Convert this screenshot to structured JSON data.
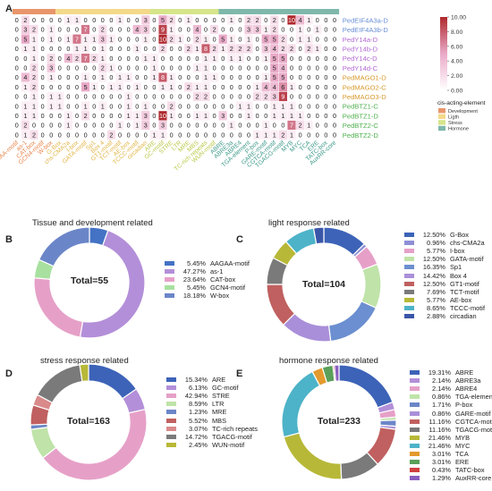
{
  "chart_data": [
    {
      "panel": "A",
      "type": "heatmap",
      "rows": [
        "PedEIF4A3a-D",
        "PedEIF4A3b-D",
        "PedY14a-D",
        "PedY14b-D",
        "PedY14c-D",
        "PedY14d-C",
        "PedMAGO1-D",
        "PedMAGO2-C",
        "PedMAGO3-D",
        "PedBTZ1-C",
        "PedBTZ1-D",
        "PedBTZ2-C",
        "PedBTZ2-D"
      ],
      "columns": [
        "AAGAA-motif",
        "as-1",
        "CAT-box",
        "GCN4-motif",
        "W-box",
        "G-Box",
        "chs-CMA2a",
        "I-box",
        "GATA-motif",
        "Sp1",
        "Box 4",
        "GT1-motif",
        "TCT-motif",
        "AE-box",
        "TCCC-motif",
        "circadian",
        "ARE",
        "GC-motif",
        "STRE",
        "LTR",
        "MRE",
        "MBS",
        "TC-rich repeats",
        "WUN-motif",
        "ABRE",
        "ABRE3a",
        "ABRE4",
        "TGA-element",
        "P-box",
        "GARE-motif",
        "CGTCA-motif",
        "TGACG-motif",
        "MYB",
        "MYC",
        "TCA",
        "ERE",
        "TATC-box",
        "AuxRR-core"
      ],
      "column_groups": [
        "Development",
        "Development",
        "Development",
        "Development",
        "Development",
        "Light",
        "Light",
        "Light",
        "Light",
        "Light",
        "Light",
        "Light",
        "Light",
        "Light",
        "Light",
        "Light",
        "Stress",
        "Stress",
        "Stress",
        "Stress",
        "Stress",
        "Stress",
        "Stress",
        "Stress",
        "Hormone",
        "Hormone",
        "Hormone",
        "Hormone",
        "Hormone",
        "Hormone",
        "Hormone",
        "Hormone",
        "Hormone",
        "Hormone",
        "Hormone",
        "Hormone",
        "Hormone",
        "Hormone"
      ],
      "values": [
        [
          0,
          2,
          0,
          0,
          0,
          0,
          1,
          1,
          0,
          0,
          0,
          0,
          1,
          0,
          0,
          3,
          0,
          5,
          2,
          0,
          1,
          0,
          0,
          0,
          0,
          1,
          0,
          2,
          2,
          0,
          2,
          0,
          10,
          4,
          1,
          0,
          0,
          0
        ],
        [
          0,
          3,
          2,
          0,
          1,
          0,
          0,
          0,
          7,
          0,
          2,
          0,
          0,
          0,
          4,
          3,
          0,
          9,
          1,
          0,
          0,
          4,
          0,
          2,
          0,
          0,
          0,
          3,
          3,
          1,
          2,
          0,
          0,
          1,
          0,
          1,
          0,
          0
        ],
        [
          0,
          5,
          1,
          0,
          1,
          0,
          1,
          7,
          1,
          1,
          3,
          1,
          0,
          0,
          0,
          1,
          0,
          10,
          2,
          1,
          0,
          2,
          1,
          0,
          5,
          1,
          0,
          1,
          0,
          5,
          5,
          2,
          0,
          1,
          1,
          0,
          0,
          0
        ],
        [
          0,
          1,
          1,
          0,
          0,
          0,
          0,
          1,
          1,
          0,
          1,
          0,
          0,
          0,
          1,
          0,
          0,
          2,
          0,
          0,
          2,
          1,
          8,
          2,
          1,
          2,
          2,
          2,
          0,
          3,
          4,
          2,
          2,
          0,
          2,
          1,
          0,
          0
        ],
        [
          0,
          0,
          1,
          0,
          2,
          0,
          4,
          2,
          7,
          2,
          1,
          0,
          0,
          0,
          0,
          1,
          1,
          0,
          0,
          0,
          0,
          0,
          1,
          1,
          0,
          1,
          1,
          0,
          0,
          1,
          5,
          5,
          0,
          0,
          0,
          0,
          0,
          0
        ],
        [
          0,
          0,
          2,
          0,
          3,
          0,
          0,
          0,
          0,
          0,
          2,
          1,
          0,
          0,
          0,
          0,
          1,
          0,
          0,
          0,
          0,
          1,
          1,
          0,
          0,
          0,
          0,
          0,
          0,
          0,
          5,
          4,
          0,
          0,
          0,
          0,
          0,
          0
        ],
        [
          0,
          4,
          2,
          0,
          1,
          0,
          0,
          0,
          1,
          0,
          1,
          0,
          1,
          1,
          0,
          0,
          1,
          8,
          1,
          0,
          0,
          0,
          1,
          1,
          0,
          0,
          0,
          0,
          0,
          1,
          5,
          5,
          0,
          0,
          0,
          0,
          0,
          0
        ],
        [
          0,
          1,
          2,
          0,
          0,
          0,
          0,
          0,
          5,
          1,
          0,
          1,
          1,
          0,
          1,
          0,
          0,
          1,
          1,
          0,
          2,
          1,
          1,
          0,
          0,
          0,
          0,
          0,
          1,
          4,
          4,
          6,
          1,
          0,
          0,
          0,
          0,
          0
        ],
        [
          0,
          0,
          1,
          0,
          1,
          1,
          0,
          0,
          0,
          0,
          0,
          0,
          0,
          1,
          0,
          0,
          0,
          0,
          0,
          0,
          0,
          2,
          2,
          0,
          0,
          0,
          0,
          0,
          2,
          2,
          3,
          9,
          0,
          0,
          0,
          0,
          0,
          0
        ],
        [
          0,
          1,
          1,
          0,
          1,
          1,
          0,
          0,
          1,
          0,
          1,
          0,
          0,
          1,
          0,
          1,
          0,
          0,
          2,
          0,
          0,
          0,
          0,
          0,
          0,
          0,
          1,
          1,
          0,
          0,
          1,
          1,
          1,
          0,
          0,
          0,
          0,
          0
        ],
        [
          0,
          1,
          1,
          0,
          0,
          0,
          1,
          0,
          2,
          0,
          0,
          0,
          0,
          1,
          1,
          3,
          0,
          10,
          1,
          0,
          0,
          1,
          1,
          0,
          3,
          0,
          0,
          1,
          0,
          0,
          1,
          1,
          1,
          1,
          0,
          0,
          0,
          0
        ],
        [
          0,
          2,
          0,
          0,
          0,
          0,
          1,
          0,
          0,
          0,
          0,
          0,
          1,
          0,
          1,
          3,
          0,
          3,
          0,
          0,
          0,
          0,
          0,
          0,
          0,
          1,
          0,
          0,
          0,
          1,
          0,
          0,
          7,
          2,
          1,
          0,
          0,
          0
        ],
        [
          0,
          1,
          2,
          0,
          0,
          0,
          0,
          0,
          0,
          0,
          0,
          2,
          0,
          0,
          0,
          0,
          1,
          1,
          0,
          0,
          0,
          0,
          0,
          0,
          0,
          0,
          0,
          0,
          1,
          1,
          1,
          2,
          1,
          0,
          0,
          0,
          0,
          0
        ]
      ],
      "colorbar": {
        "min": 0,
        "max": 10,
        "ticks": [
          "10.00",
          "8.00",
          "6.00",
          "4.00",
          "2.00",
          "0.00"
        ]
      },
      "legend_title": "cis-acting-element",
      "legend_items": [
        {
          "label": "Development",
          "color": "#e8956b"
        },
        {
          "label": "Ligth",
          "color": "#f4d98a"
        },
        {
          "label": "Stress",
          "color": "#d6e58a"
        },
        {
          "label": "Hormone",
          "color": "#7fb8ab"
        }
      ],
      "row_label_colors": [
        "#6a8fd6",
        "#6a8fd6",
        "#b46ad6",
        "#b46ad6",
        "#b46ad6",
        "#b46ad6",
        "#d89a2e",
        "#d89a2e",
        "#d89a2e",
        "#4fb04f",
        "#4fb04f",
        "#4fb04f",
        "#4fb04f"
      ],
      "column_label_colors": {
        "Development": "#e8874f",
        "Light": "#e3b64a",
        "Stress": "#bcc84a",
        "Hormone": "#3e9a8a"
      }
    },
    {
      "panel": "B",
      "type": "pie",
      "title": "Tissue and development related",
      "center_label": "Total=55",
      "slices": [
        {
          "label": "AAGAA-motif",
          "percent": "5.45%",
          "value": 5.45,
          "color": "#4472c4"
        },
        {
          "label": "as-1",
          "percent": "47.27%",
          "value": 47.27,
          "color": "#b38fd9"
        },
        {
          "label": "CAT-box",
          "percent": "23.64%",
          "value": 23.64,
          "color": "#e6a0c8"
        },
        {
          "label": "GCN4-motif",
          "percent": "5.45%",
          "value": 5.45,
          "color": "#a8e0a0"
        },
        {
          "label": "W-box",
          "percent": "18.18%",
          "value": 18.18,
          "color": "#6b86c8"
        }
      ]
    },
    {
      "panel": "C",
      "type": "pie",
      "title": "light response related",
      "center_label": "Total=104",
      "slices": [
        {
          "label": "G-Box",
          "percent": "12.50%",
          "value": 12.5,
          "color": "#3d63b8"
        },
        {
          "label": "chs-CMA2a",
          "percent": "0.96%",
          "value": 0.96,
          "color": "#8e8fd6"
        },
        {
          "label": "I-box",
          "percent": "5.77%",
          "value": 5.77,
          "color": "#e6a0c8"
        },
        {
          "label": "GATA-motif",
          "percent": "12.50%",
          "value": 12.5,
          "color": "#bfe3a8"
        },
        {
          "label": "Sp1",
          "percent": "16.35%",
          "value": 16.35,
          "color": "#6b8fd0"
        },
        {
          "label": "Box 4",
          "percent": "14.42%",
          "value": 14.42,
          "color": "#a98fd9"
        },
        {
          "label": "GT1-motif",
          "percent": "12.50%",
          "value": 12.5,
          "color": "#c06060"
        },
        {
          "label": "TCT-motif",
          "percent": "7.69%",
          "value": 7.69,
          "color": "#7a7a7a"
        },
        {
          "label": "AE-box",
          "percent": "5.77%",
          "value": 5.77,
          "color": "#b8b838"
        },
        {
          "label": "TCCC-motif",
          "percent": "8.65%",
          "value": 8.65,
          "color": "#4db3c8"
        },
        {
          "label": "circadian",
          "percent": "2.88%",
          "value": 2.88,
          "color": "#3a56a8"
        }
      ]
    },
    {
      "panel": "D",
      "type": "pie",
      "title": "stress response related",
      "center_label": "Total=163",
      "slices": [
        {
          "label": "ARE",
          "percent": "15.34%",
          "value": 15.34,
          "color": "#3d63b8"
        },
        {
          "label": "GC-motif",
          "percent": "6.13%",
          "value": 6.13,
          "color": "#b38fd9"
        },
        {
          "label": "STRE",
          "percent": "42.94%",
          "value": 42.94,
          "color": "#e6a0c8"
        },
        {
          "label": "LTR",
          "percent": "8.59%",
          "value": 8.59,
          "color": "#bfe3a8"
        },
        {
          "label": "MRE",
          "percent": "1.23%",
          "value": 1.23,
          "color": "#6b86c8"
        },
        {
          "label": "MBS",
          "percent": "5.52%",
          "value": 5.52,
          "color": "#c06060"
        },
        {
          "label": "TC-rich repeats",
          "percent": "3.07%",
          "value": 3.07,
          "color": "#d98a8a"
        },
        {
          "label": "TGACG-motif",
          "percent": "14.72%",
          "value": 14.72,
          "color": "#7a7a7a"
        },
        {
          "label": "WUN-motif",
          "percent": "2.45%",
          "value": 2.45,
          "color": "#b8b838"
        }
      ]
    },
    {
      "panel": "E",
      "type": "pie",
      "title": "hormone response related",
      "center_label": "Total=233",
      "slices": [
        {
          "label": "ABRE",
          "percent": "19.31%",
          "value": 19.31,
          "color": "#3d63b8"
        },
        {
          "label": "ABRE3a",
          "percent": "2.14%",
          "value": 2.14,
          "color": "#b38fd9"
        },
        {
          "label": "ABRE4",
          "percent": "2.14%",
          "value": 2.14,
          "color": "#e6a0c8"
        },
        {
          "label": "TGA-element",
          "percent": "0.86%",
          "value": 0.86,
          "color": "#bfe3a8"
        },
        {
          "label": "P-box",
          "percent": "1.71%",
          "value": 1.71,
          "color": "#6b86c8"
        },
        {
          "label": "GARE-motif",
          "percent": "0.86%",
          "value": 0.86,
          "color": "#a98fd9"
        },
        {
          "label": "CGTCA-motif",
          "percent": "11.16%",
          "value": 11.16,
          "color": "#c06060"
        },
        {
          "label": "TGACG-motif",
          "percent": "11.16%",
          "value": 11.16,
          "color": "#7a7a7a"
        },
        {
          "label": "MYB",
          "percent": "21.46%",
          "value": 21.46,
          "color": "#b8b838"
        },
        {
          "label": "MYC",
          "percent": "21.46%",
          "value": 21.46,
          "color": "#4db3c8"
        },
        {
          "label": "TCA",
          "percent": "3.01%",
          "value": 3.01,
          "color": "#e39a2e"
        },
        {
          "label": "ERE",
          "percent": "3.01%",
          "value": 3.01,
          "color": "#5aa05a"
        },
        {
          "label": "TATC-box",
          "percent": "0.43%",
          "value": 0.43,
          "color": "#d04040"
        },
        {
          "label": "AuxRR-core",
          "percent": "1.29%",
          "value": 1.29,
          "color": "#8a5fc0"
        }
      ]
    }
  ]
}
